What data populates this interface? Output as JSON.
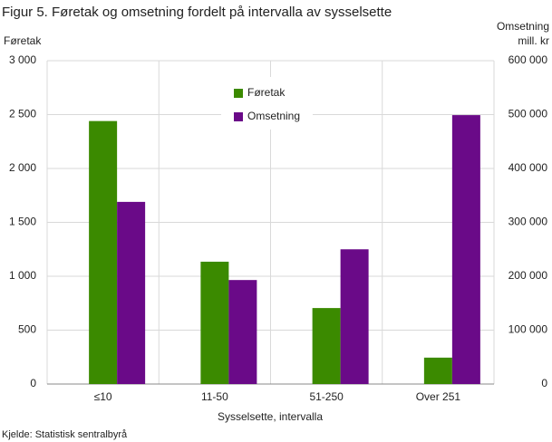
{
  "chart_data": {
    "type": "bar",
    "title": "Figur 5. Føretak og omsetning fordelt på intervalla av sysselsette",
    "ylabel": "Føretak",
    "y2label": [
      "Omsetning",
      "mill. kr"
    ],
    "xlabel": "Sysselsette,  intervalla",
    "source": "Kjelde: Statistisk sentralbyrå",
    "categories": [
      "≤10",
      "11-50",
      "51-250",
      "Over 251"
    ],
    "series": [
      {
        "name": "Føretak",
        "color": "#3b8a00",
        "values": [
          2440,
          1135,
          705,
          245
        ]
      },
      {
        "name": "Omsetning",
        "color": "#6a0a88",
        "axis": "y2",
        "values": [
          338000,
          193000,
          250000,
          499000
        ]
      }
    ],
    "ylim": [
      0,
      3000
    ],
    "yticks": [
      0,
      {
        "value": 500,
        "label": "500"
      },
      {
        "value": 1000,
        "label": "1 000"
      },
      {
        "value": 1500,
        "label": "1 500"
      },
      {
        "value": 2000,
        "label": "2 000"
      },
      {
        "value": 2500,
        "label": "2 500"
      },
      {
        "value": 3000,
        "label": "3 000"
      }
    ],
    "y2lim": [
      0,
      600000
    ],
    "y2ticks": [
      0,
      {
        "value": 100000,
        "label": "100 000"
      },
      {
        "value": 200000,
        "label": "200 000"
      },
      {
        "value": 300000,
        "label": "300 000"
      },
      {
        "value": 400000,
        "label": "400 000"
      },
      {
        "value": 500000,
        "label": "500 000"
      },
      {
        "value": 600000,
        "label": "600 000"
      }
    ],
    "grid": true
  }
}
